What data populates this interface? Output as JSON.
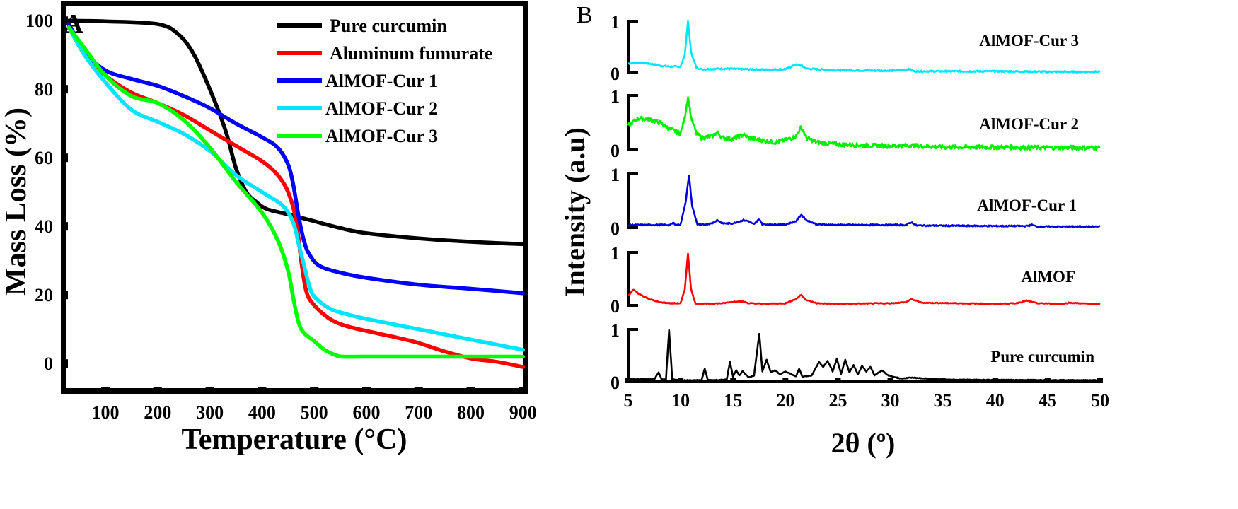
{
  "chart_data": [
    {
      "panel": "A",
      "type": "line",
      "title": "",
      "xlabel": "Temperature (°C)",
      "ylabel": "Mass Loss (%)",
      "xlim": [
        20,
        905
      ],
      "ylim": [
        -8,
        105
      ],
      "xticks": [
        100,
        200,
        300,
        400,
        500,
        600,
        700,
        800,
        900
      ],
      "yticks": [
        0,
        20,
        40,
        60,
        80,
        100
      ],
      "legend_position": "top-right",
      "series": [
        {
          "name": "Pure curcumin",
          "color": "#000000",
          "x": [
            30,
            100,
            200,
            240,
            270,
            300,
            330,
            350,
            370,
            390,
            410,
            450,
            500,
            550,
            600,
            700,
            800,
            900
          ],
          "y": [
            100,
            99.8,
            99,
            96,
            90,
            80,
            68,
            57,
            50,
            47,
            45,
            43.5,
            41.5,
            39.5,
            38,
            36.5,
            35.5,
            34.8
          ]
        },
        {
          "name": "Aluminum fumurate",
          "color": "#ff0000",
          "x": [
            30,
            60,
            100,
            150,
            200,
            250,
            300,
            350,
            400,
            430,
            450,
            465,
            475,
            485,
            500,
            530,
            560,
            600,
            660,
            700,
            750,
            800,
            850,
            900
          ],
          "y": [
            99,
            90,
            84,
            79,
            76,
            72.5,
            68,
            63.5,
            59,
            55,
            50,
            42,
            30,
            21,
            17,
            13,
            11,
            9.5,
            7.5,
            6,
            3.5,
            1.5,
            0.5,
            -1
          ]
        },
        {
          "name": "AlMOF-Cur 1",
          "color": "#0000ff",
          "x": [
            30,
            60,
            100,
            150,
            200,
            250,
            300,
            350,
            400,
            430,
            450,
            460,
            470,
            480,
            490,
            510,
            550,
            600,
            700,
            800,
            900
          ],
          "y": [
            99,
            91,
            85.5,
            83,
            81,
            78,
            74.5,
            70,
            66,
            63,
            58,
            52,
            43,
            36,
            32,
            28.5,
            26.5,
            25,
            23,
            21.8,
            20.5
          ]
        },
        {
          "name": "AlMOF-Cur 2",
          "color": "#00e5ff",
          "x": [
            30,
            60,
            100,
            150,
            200,
            250,
            300,
            350,
            400,
            440,
            460,
            470,
            480,
            490,
            500,
            530,
            560,
            600,
            700,
            800,
            900
          ],
          "y": [
            98,
            90,
            82,
            74,
            70.5,
            67,
            62,
            55,
            50,
            46,
            41,
            35,
            29,
            23,
            19.5,
            16,
            14.5,
            13,
            10,
            7,
            4
          ]
        },
        {
          "name": "AlMOF-Cur 3",
          "color": "#00ff00",
          "x": [
            30,
            60,
            100,
            150,
            200,
            250,
            300,
            350,
            400,
            430,
            450,
            460,
            470,
            480,
            500,
            520,
            540,
            555,
            600,
            700,
            800,
            900
          ],
          "y": [
            98,
            92,
            84,
            78,
            76,
            71,
            63,
            53,
            44,
            36,
            27,
            19,
            12,
            9,
            6.5,
            4,
            2.5,
            2,
            2,
            2,
            2,
            2
          ]
        }
      ]
    },
    {
      "panel": "B",
      "type": "line",
      "title": "",
      "xlabel": "2θ (º)",
      "ylabel": "Intensity (a.u)",
      "xlim": [
        5,
        50
      ],
      "xticks": [
        5,
        10,
        15,
        20,
        25,
        30,
        35,
        40,
        45,
        50
      ],
      "stacked": true,
      "series": [
        {
          "name": "AlMOF-Cur 3",
          "color": "#00e5ff",
          "base": 0.2,
          "noise": 0.015,
          "x": [
            5,
            6,
            7,
            8,
            9,
            10,
            10.4,
            10.7,
            11.0,
            11.5,
            12,
            14,
            16,
            18,
            20,
            21,
            21.5,
            22,
            25,
            30,
            31.8,
            32.3,
            40,
            45,
            50
          ],
          "y": [
            0.18,
            0.2,
            0.18,
            0.14,
            0.12,
            0.12,
            0.35,
            1.0,
            0.4,
            0.1,
            0.07,
            0.08,
            0.07,
            0.06,
            0.07,
            0.16,
            0.14,
            0.08,
            0.05,
            0.04,
            0.07,
            0.03,
            0.03,
            0.02,
            0.02
          ]
        },
        {
          "name": "AlMOF-Cur 2",
          "color": "#00ee00",
          "base": 0.35,
          "noise": 0.04,
          "x": [
            5,
            6,
            7,
            8,
            9,
            10,
            10.4,
            10.7,
            11.0,
            11.5,
            12,
            13,
            13.5,
            14,
            15,
            16,
            16.5,
            17,
            19,
            20,
            21,
            21.5,
            22,
            23,
            25,
            28,
            30,
            32,
            35,
            40,
            45,
            50
          ],
          "y": [
            0.45,
            0.58,
            0.56,
            0.5,
            0.38,
            0.3,
            0.6,
            0.98,
            0.6,
            0.3,
            0.22,
            0.25,
            0.32,
            0.22,
            0.2,
            0.28,
            0.22,
            0.2,
            0.14,
            0.18,
            0.25,
            0.42,
            0.22,
            0.14,
            0.1,
            0.08,
            0.07,
            0.08,
            0.05,
            0.05,
            0.04,
            0.04
          ]
        },
        {
          "name": "AlMOF-Cur 1",
          "color": "#0000e0",
          "base": 0.0,
          "noise": 0.012,
          "x": [
            5,
            9,
            9.3,
            9.6,
            10,
            10.5,
            10.8,
            11.1,
            11.6,
            12,
            13,
            13.5,
            14,
            15,
            16,
            16.5,
            17,
            17.5,
            17.8,
            18,
            19,
            20,
            21,
            21.5,
            22,
            23,
            25,
            28,
            31.5,
            32,
            32.5,
            40,
            43,
            43.5,
            44,
            50
          ],
          "y": [
            0.05,
            0.05,
            0.09,
            0.05,
            0.06,
            0.5,
            0.98,
            0.4,
            0.06,
            0.05,
            0.08,
            0.14,
            0.08,
            0.08,
            0.14,
            0.12,
            0.06,
            0.16,
            0.06,
            0.06,
            0.06,
            0.06,
            0.12,
            0.24,
            0.14,
            0.06,
            0.05,
            0.05,
            0.05,
            0.1,
            0.04,
            0.03,
            0.03,
            0.05,
            0.02,
            0.02
          ]
        },
        {
          "name": "AlMOF",
          "color": "#ff0000",
          "base": 0.0,
          "noise": 0.008,
          "x": [
            5,
            5.5,
            6,
            7,
            8,
            9,
            10,
            10.4,
            10.7,
            11.0,
            11.4,
            12,
            14,
            15.5,
            16,
            16.5,
            18,
            20,
            21,
            21.5,
            22,
            23,
            25,
            30,
            31.5,
            32,
            33,
            40,
            42,
            43,
            44,
            46.5,
            47,
            50
          ],
          "y": [
            0.18,
            0.3,
            0.22,
            0.12,
            0.06,
            0.04,
            0.04,
            0.3,
            0.98,
            0.3,
            0.04,
            0.03,
            0.04,
            0.08,
            0.07,
            0.04,
            0.03,
            0.04,
            0.12,
            0.2,
            0.1,
            0.04,
            0.03,
            0.04,
            0.06,
            0.12,
            0.05,
            0.03,
            0.04,
            0.09,
            0.04,
            0.03,
            0.05,
            0.02
          ]
        },
        {
          "name": "Pure curcumin",
          "color": "#000000",
          "base": 0.02,
          "noise": 0.006,
          "x": [
            5,
            7.5,
            7.9,
            8.2,
            8.6,
            8.9,
            9.2,
            9.5,
            9.8,
            12,
            12.3,
            12.6,
            14.4,
            14.7,
            15.0,
            15.3,
            15.6,
            15.9,
            16.5,
            17,
            17.5,
            17.8,
            18.2,
            18.6,
            19.0,
            19.5,
            20,
            21.0,
            21.3,
            21.6,
            22.5,
            23.2,
            23.6,
            24.0,
            24.5,
            24.9,
            25.3,
            25.7,
            26.1,
            26.5,
            26.9,
            27.3,
            27.7,
            28.1,
            28.5,
            29.2,
            29.8,
            31,
            32,
            35,
            50
          ],
          "y": [
            0.05,
            0.05,
            0.18,
            0.04,
            0.05,
            0.98,
            0.05,
            0.04,
            0.03,
            0.03,
            0.25,
            0.03,
            0.04,
            0.38,
            0.1,
            0.22,
            0.12,
            0.2,
            0.08,
            0.12,
            0.92,
            0.2,
            0.42,
            0.18,
            0.22,
            0.14,
            0.2,
            0.1,
            0.25,
            0.1,
            0.12,
            0.38,
            0.28,
            0.4,
            0.2,
            0.44,
            0.15,
            0.42,
            0.18,
            0.32,
            0.14,
            0.3,
            0.2,
            0.28,
            0.12,
            0.22,
            0.12,
            0.06,
            0.08,
            0.04,
            0.03
          ]
        }
      ],
      "scale_label_top": "1",
      "scale_label_bottom": "0"
    }
  ],
  "labels": {
    "panel_a": "A",
    "panel_b": "B"
  }
}
